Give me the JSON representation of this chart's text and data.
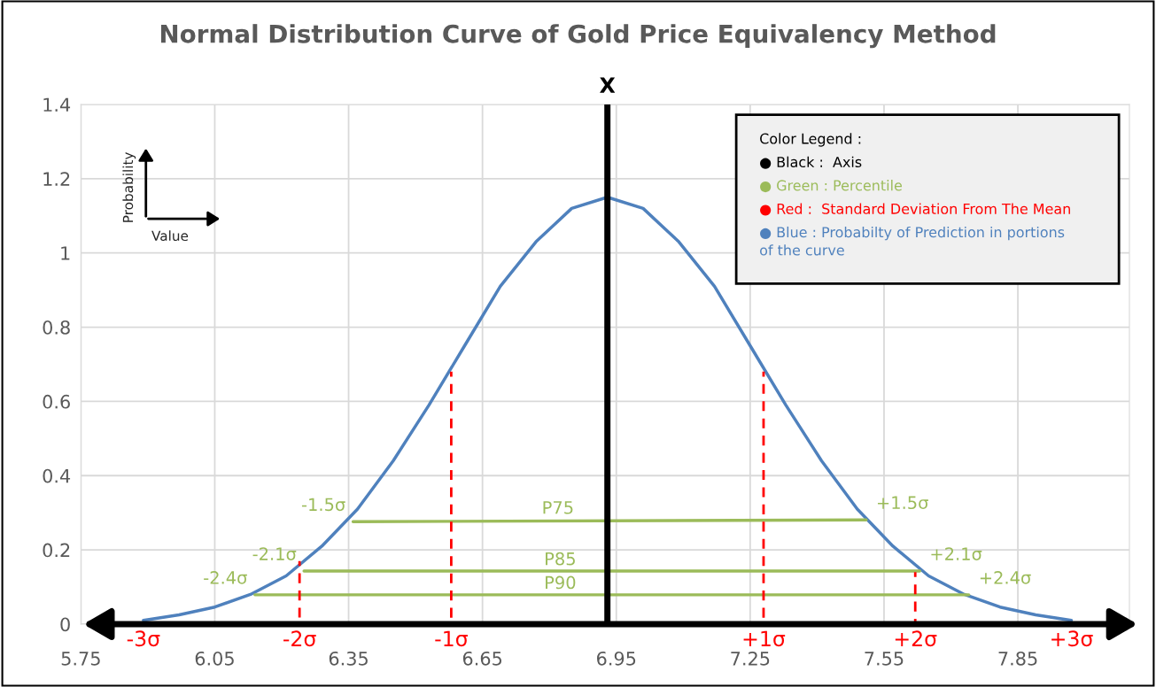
{
  "chart_data": {
    "type": "line",
    "title": "Normal Distribution Curve of Gold Price Equivalency Method",
    "xlim": [
      5.75,
      8.1
    ],
    "ylim": [
      0,
      1.4
    ],
    "xticks": [
      5.75,
      6.05,
      6.35,
      6.65,
      6.95,
      7.25,
      7.55,
      7.85
    ],
    "yticks": [
      0,
      0.2,
      0.4,
      0.6,
      0.8,
      1,
      1.2,
      1.4
    ],
    "grid": true,
    "series": [
      {
        "color": "#4f81bd",
        "x": [
          5.89,
          5.97,
          6.05,
          6.13,
          6.21,
          6.29,
          6.37,
          6.45,
          6.53,
          6.61,
          6.69,
          6.77,
          6.85,
          6.93,
          7.01,
          7.09,
          7.17,
          7.25,
          7.33,
          7.41,
          7.49,
          7.57,
          7.65,
          7.73,
          7.81,
          7.89,
          7.97
        ],
        "values": [
          0.01,
          0.025,
          0.046,
          0.08,
          0.13,
          0.21,
          0.31,
          0.44,
          0.59,
          0.75,
          0.91,
          1.03,
          1.12,
          1.15,
          1.12,
          1.03,
          0.91,
          0.75,
          0.59,
          0.44,
          0.31,
          0.21,
          0.13,
          0.08,
          0.046,
          0.025,
          0.01
        ]
      },
      {
        "name": "P75",
        "color": "#9bbb59",
        "x": [
          6.36,
          7.51
        ],
        "values": [
          0.276,
          0.281
        ]
      },
      {
        "name": "P85",
        "color": "#9bbb59",
        "x": [
          6.25,
          7.63
        ],
        "values": [
          0.143,
          0.143
        ]
      },
      {
        "name": "P90",
        "color": "#9bbb59",
        "x": [
          6.14,
          7.74
        ],
        "values": [
          0.079,
          0.079
        ]
      },
      {
        "color": "#ff0000",
        "line_style": "dashed",
        "x": [
          6.24,
          6.24
        ],
        "values": [
          0,
          0.17
        ]
      },
      {
        "color": "#ff0000",
        "line_style": "dashed",
        "x": [
          6.58,
          6.58
        ],
        "values": [
          0,
          0.68
        ]
      },
      {
        "color": "#ff0000",
        "line_style": "dashed",
        "x": [
          7.28,
          7.28
        ],
        "values": [
          0,
          0.68
        ]
      },
      {
        "color": "#ff0000",
        "line_style": "dashed",
        "x": [
          7.62,
          7.62
        ],
        "values": [
          0,
          0.14
        ]
      }
    ],
    "ref_lines": [
      {
        "axis": "x",
        "value": 6.93,
        "label": "X",
        "color": "#000000"
      }
    ],
    "annotations": [
      "Probability",
      "Value",
      "Color Legend :",
      "● Black :  Axis",
      "● Green : Percentile",
      "● Red :  Standard Deviation From The Mean",
      "● Blue : Probabilty of Prediction in portions\nof the curve",
      {
        "text": "-3σ",
        "x": 5.89,
        "y": 0
      },
      {
        "text": "-2σ",
        "x": 6.24,
        "y": 0
      },
      {
        "text": "-1σ",
        "x": 6.58,
        "y": 0
      },
      {
        "text": "+1σ",
        "x": 7.28,
        "y": 0
      },
      {
        "text": "+2σ",
        "x": 7.62,
        "y": 0
      },
      {
        "text": "+3σ",
        "x": 7.97,
        "y": 0
      },
      {
        "text": "-1.5σ",
        "x": 6.36,
        "y": 0.276
      },
      {
        "text": "+1.5σ",
        "x": 7.51,
        "y": 0.281
      },
      {
        "text": "-2.1σ",
        "x": 6.25,
        "y": 0.143
      },
      {
        "text": "+2.1σ",
        "x": 7.63,
        "y": 0.143
      },
      {
        "text": "-2.4σ",
        "x": 6.14,
        "y": 0.079
      },
      {
        "text": "+2.4σ",
        "x": 7.74,
        "y": 0.079
      }
    ]
  }
}
